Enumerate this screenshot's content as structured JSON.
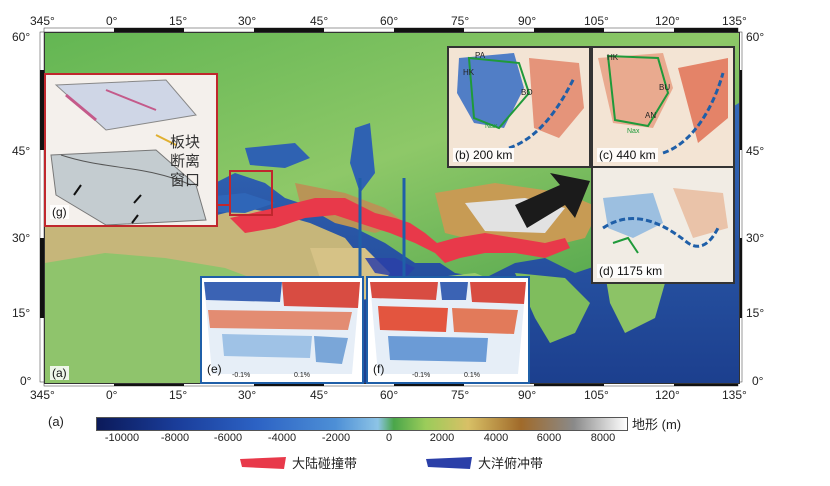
{
  "axes": {
    "top_lon": [
      "345°",
      "0°",
      "15°",
      "30°",
      "45°",
      "60°",
      "75°",
      "90°",
      "105°",
      "120°",
      "135°"
    ],
    "bottom_lon": [
      "345°",
      "0°",
      "15°",
      "30°",
      "45°",
      "60°",
      "75°",
      "90°",
      "105°",
      "120°",
      "135°"
    ],
    "left_lat": [
      "60°",
      "45°",
      "30°",
      "15°",
      "0°"
    ],
    "right_lat": [
      "60°",
      "45°",
      "30°",
      "15°",
      "0°"
    ]
  },
  "panel_a_label": "(a)",
  "outer_label": "(a)",
  "insets": {
    "g": {
      "label": "(g)",
      "text_lines": [
        "板块",
        "断离",
        "窗口"
      ]
    },
    "b": {
      "label": "(b) 200 km",
      "marks": [
        "PA",
        "HK",
        "BO",
        "Nax"
      ]
    },
    "c": {
      "label": "(c) 440 km",
      "marks": [
        "HK",
        "BU",
        "AN",
        "Nax"
      ]
    },
    "d": {
      "label": "(d) 1175 km"
    },
    "e": {
      "label": "(e)",
      "scale_min": "-0.1%",
      "scale_max": "0.1%"
    },
    "f": {
      "label": "(f)",
      "scale_min": "-0.1%",
      "scale_max": "0.1%"
    }
  },
  "colorbar": {
    "ticks": [
      "-10000",
      "-8000",
      "-6000",
      "-4000",
      "-2000",
      "0",
      "2000",
      "4000",
      "6000",
      "8000"
    ],
    "label": "地形 (m)"
  },
  "legend": {
    "continental": "大陆碰撞带",
    "oceanic": "大洋俯冲带"
  },
  "colors": {
    "collision": "#e8394a",
    "subduction": "#2b3fa8",
    "frame_red": "#c0272d",
    "frame_blue": "#1f5fa8"
  }
}
